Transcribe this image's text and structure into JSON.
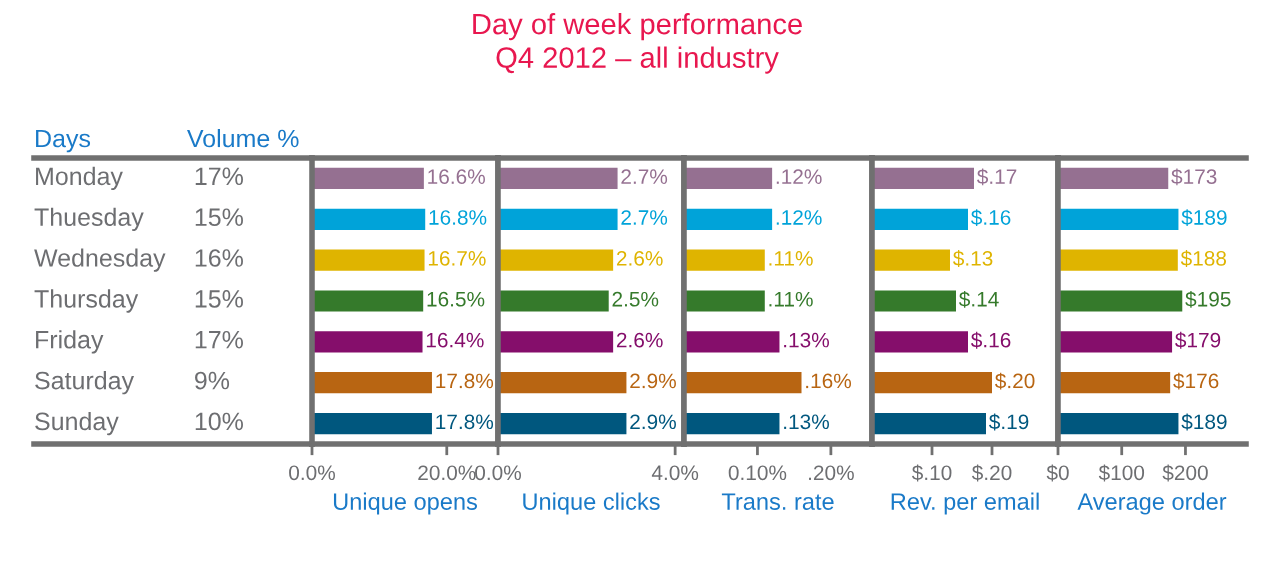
{
  "chart_data": [
    {
      "type": "other",
      "title": "Day of week performance\nQ4 2012 – all industry",
      "ylabel": "Days",
      "xlabel": "Volume %",
      "categories": [
        "Monday",
        "Thuesday",
        "Wednesday",
        "Thursday",
        "Friday",
        "Saturday",
        "Sunday"
      ],
      "values": [
        17,
        15,
        16,
        15,
        17,
        9,
        10
      ],
      "value_labels": [
        "17%",
        "15%",
        "16%",
        "15%",
        "17%",
        "9%",
        "10%"
      ]
    },
    {
      "type": "bar",
      "orientation": "horizontal",
      "xlabel": "Unique opens",
      "tick_labels": "x",
      "categories": [
        null,
        null,
        null,
        null,
        null,
        null,
        null
      ],
      "values": [
        16.6,
        16.8,
        16.7,
        16.5,
        16.4,
        17.8,
        17.8
      ],
      "value_labels": [
        "16.6%",
        "16.8%",
        "16.7%",
        "16.5%",
        "16.4%",
        "17.8%",
        "17.8%"
      ],
      "colors": [
        "#957091",
        "#00a3d9",
        "#dfb400",
        "#357a2b",
        "#850e6b",
        "#b86512",
        "#00577e"
      ],
      "xlim": [
        0,
        27.6
      ],
      "xticks": [
        {
          "value": 0,
          "label": "0.0%"
        },
        {
          "value": 20,
          "label": "20.0%"
        }
      ]
    },
    {
      "type": "bar",
      "orientation": "horizontal",
      "xlabel": "Unique clicks",
      "tick_labels": "x",
      "categories": [
        null,
        null,
        null,
        null,
        null,
        null,
        null
      ],
      "values": [
        2.7,
        2.7,
        2.6,
        2.5,
        2.6,
        2.9,
        2.9
      ],
      "value_labels": [
        "2.7%",
        "2.7%",
        "2.6%",
        "2.5%",
        "2.6%",
        "2.9%",
        "2.9%"
      ],
      "colors": [
        "#957091",
        "#00a3d9",
        "#dfb400",
        "#357a2b",
        "#850e6b",
        "#b86512",
        "#00577e"
      ],
      "xlim": [
        0,
        4.2
      ],
      "xticks": [
        {
          "value": 0,
          "label": "0.0%"
        },
        {
          "value": 4,
          "label": "4.0%"
        }
      ]
    },
    {
      "type": "bar",
      "orientation": "horizontal",
      "xlabel": "Trans. rate",
      "tick_labels": "x",
      "categories": [
        null,
        null,
        null,
        null,
        null,
        null,
        null
      ],
      "values": [
        0.12,
        0.12,
        0.11,
        0.11,
        0.13,
        0.16,
        0.13
      ],
      "value_labels": [
        ".12%",
        ".12%",
        ".11%",
        ".11%",
        ".13%",
        ".16%",
        ".13%"
      ],
      "colors": [
        "#957091",
        "#00a3d9",
        "#dfb400",
        "#357a2b",
        "#850e6b",
        "#b86512",
        "#00577e"
      ],
      "xlim": [
        0,
        0.256
      ],
      "xticks": [
        {
          "value": 0.1,
          "label": "0.10%"
        },
        {
          "value": 0.2,
          "label": ".20%"
        }
      ]
    },
    {
      "type": "bar",
      "orientation": "horizontal",
      "xlabel": "Rev. per email",
      "tick_labels": "x",
      "categories": [
        null,
        null,
        null,
        null,
        null,
        null,
        null
      ],
      "values": [
        0.17,
        0.16,
        0.13,
        0.14,
        0.16,
        0.2,
        0.19
      ],
      "value_labels": [
        "$.17",
        "$.16",
        "$.13",
        "$.14",
        "$.16",
        "$.20",
        "$.19"
      ],
      "colors": [
        "#957091",
        "#00a3d9",
        "#dfb400",
        "#357a2b",
        "#850e6b",
        "#b86512",
        "#00577e"
      ],
      "xlim": [
        0,
        0.31
      ],
      "xticks": [
        {
          "value": 0.1,
          "label": "$.10"
        },
        {
          "value": 0.2,
          "label": "$.20"
        }
      ]
    },
    {
      "type": "bar",
      "orientation": "horizontal",
      "xlabel": "Average order",
      "tick_labels": "x",
      "categories": [
        null,
        null,
        null,
        null,
        null,
        null,
        null
      ],
      "values": [
        173,
        189,
        188,
        195,
        179,
        176,
        189
      ],
      "value_labels": [
        "$173",
        "$189",
        "$188",
        "$195",
        "$179",
        "$176",
        "$189"
      ],
      "colors": [
        "#957091",
        "#00a3d9",
        "#dfb400",
        "#357a2b",
        "#850e6b",
        "#b86512",
        "#00577e"
      ],
      "xlim": [
        0,
        295
      ],
      "xticks": [
        {
          "value": 0,
          "label": "$0"
        },
        {
          "value": 100,
          "label": "$100"
        },
        {
          "value": 200,
          "label": "$200"
        }
      ]
    }
  ]
}
